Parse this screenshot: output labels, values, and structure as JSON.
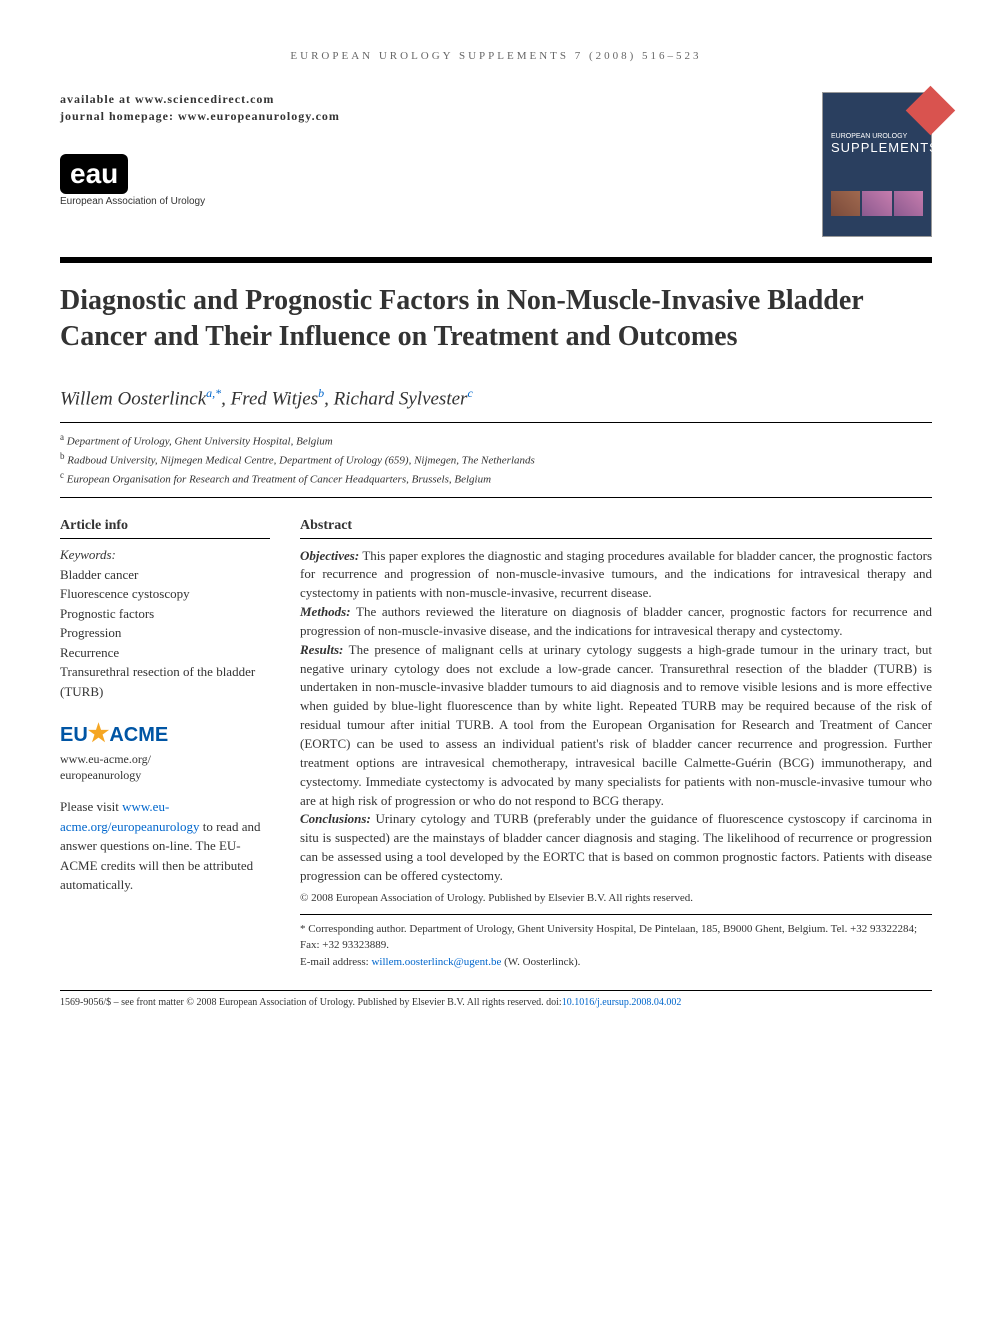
{
  "running_header": "EUROPEAN UROLOGY SUPPLEMENTS 7 (2008) 516–523",
  "availability": "available at www.sciencedirect.com",
  "journal_homepage": "journal homepage: www.europeanurology.com",
  "logo": {
    "text": "eau",
    "subtitle": "European Association of Urology"
  },
  "journal_cover": {
    "pretitle": "EUROPEAN UROLOGY",
    "title": "SUPPLEMENTS",
    "background_color": "#2a3f5f",
    "badge_color": "#d9534f"
  },
  "title": "Diagnostic and Prognostic Factors in Non-Muscle-Invasive Bladder Cancer and Their Influence on Treatment and Outcomes",
  "authors": [
    {
      "name": "Willem Oosterlinck",
      "sup": "a,*"
    },
    {
      "name": "Fred Witjes",
      "sup": "b"
    },
    {
      "name": "Richard Sylvester",
      "sup": "c"
    }
  ],
  "affiliations": [
    {
      "sup": "a",
      "text": "Department of Urology, Ghent University Hospital, Belgium"
    },
    {
      "sup": "b",
      "text": "Radboud University, Nijmegen Medical Centre, Department of Urology (659), Nijmegen, The Netherlands"
    },
    {
      "sup": "c",
      "text": "European Organisation for Research and Treatment of Cancer Headquarters, Brussels, Belgium"
    }
  ],
  "article_info": {
    "header": "Article info",
    "keywords_label": "Keywords:",
    "keywords": [
      "Bladder cancer",
      "Fluorescence cystoscopy",
      "Prognostic factors",
      "Progression",
      "Recurrence",
      "Transurethral resection of the bladder (TURB)"
    ]
  },
  "eu_acme": {
    "eu": "EU",
    "star": "★",
    "acme": "ACME",
    "url_line1": "www.eu-acme.org/",
    "url_line2": "europeanurology",
    "text_pre": "Please visit ",
    "link": "www.eu-acme.org/europeanurology",
    "text_post": " to read and answer questions on-line. The EU-ACME credits will then be attributed automatically."
  },
  "abstract": {
    "header": "Abstract",
    "objectives_label": "Objectives:",
    "objectives": " This paper explores the diagnostic and staging procedures available for bladder cancer, the prognostic factors for recurrence and progression of non-muscle-invasive tumours, and the indications for intravesical therapy and cystectomy in patients with non-muscle-invasive, recurrent disease.",
    "methods_label": "Methods:",
    "methods": " The authors reviewed the literature on diagnosis of bladder cancer, prognostic factors for recurrence and progression of non-muscle-invasive disease, and the indications for intravesical therapy and cystectomy.",
    "results_label": "Results:",
    "results": " The presence of malignant cells at urinary cytology suggests a high-grade tumour in the urinary tract, but negative urinary cytology does not exclude a low-grade cancer. Transurethral resection of the bladder (TURB) is undertaken in non-muscle-invasive bladder tumours to aid diagnosis and to remove visible lesions and is more effective when guided by blue-light fluorescence than by white light. Repeated TURB may be required because of the risk of residual tumour after initial TURB. A tool from the European Organisation for Research and Treatment of Cancer (EORTC) can be used to assess an individual patient's risk of bladder cancer recurrence and progression. Further treatment options are intravesical chemotherapy, intravesical bacille Calmette-Guérin (BCG) immunotherapy, and cystectomy. Immediate cystectomy is advocated by many specialists for patients with non-muscle-invasive tumour who are at high risk of progression or who do not respond to BCG therapy.",
    "conclusions_label": "Conclusions:",
    "conclusions": " Urinary cytology and TURB (preferably under the guidance of fluorescence cystoscopy if carcinoma in situ is suspected) are the mainstays of bladder cancer diagnosis and staging. The likelihood of recurrence or progression can be assessed using a tool developed by the EORTC that is based on common prognostic factors. Patients with disease progression can be offered cystectomy.",
    "copyright": "© 2008 European Association of Urology. Published by Elsevier B.V. All rights reserved."
  },
  "corresponding": {
    "text": "* Corresponding author. Department of Urology, Ghent University Hospital, De Pintelaan, 185, B9000 Ghent, Belgium. Tel. +32 93322284; Fax: +32 93323889.",
    "email_label": "E-mail address: ",
    "email": "willem.oosterlinck@ugent.be",
    "email_suffix": " (W. Oosterlinck)."
  },
  "footer": {
    "text": "1569-9056/$ – see front matter © 2008 European Association of Urology. Published by Elsevier B.V. All rights reserved.   doi:",
    "doi": "10.1016/j.eursup.2008.04.002"
  },
  "colors": {
    "link": "#0066cc",
    "text": "#333333",
    "background": "#ffffff",
    "eu_acme_blue": "#0055a4",
    "eu_acme_star": "#f5a623"
  },
  "typography": {
    "title_fontsize": 28,
    "author_fontsize": 19,
    "body_fontsize": 13,
    "footnote_fontsize": 11,
    "running_header_fontsize": 11
  }
}
